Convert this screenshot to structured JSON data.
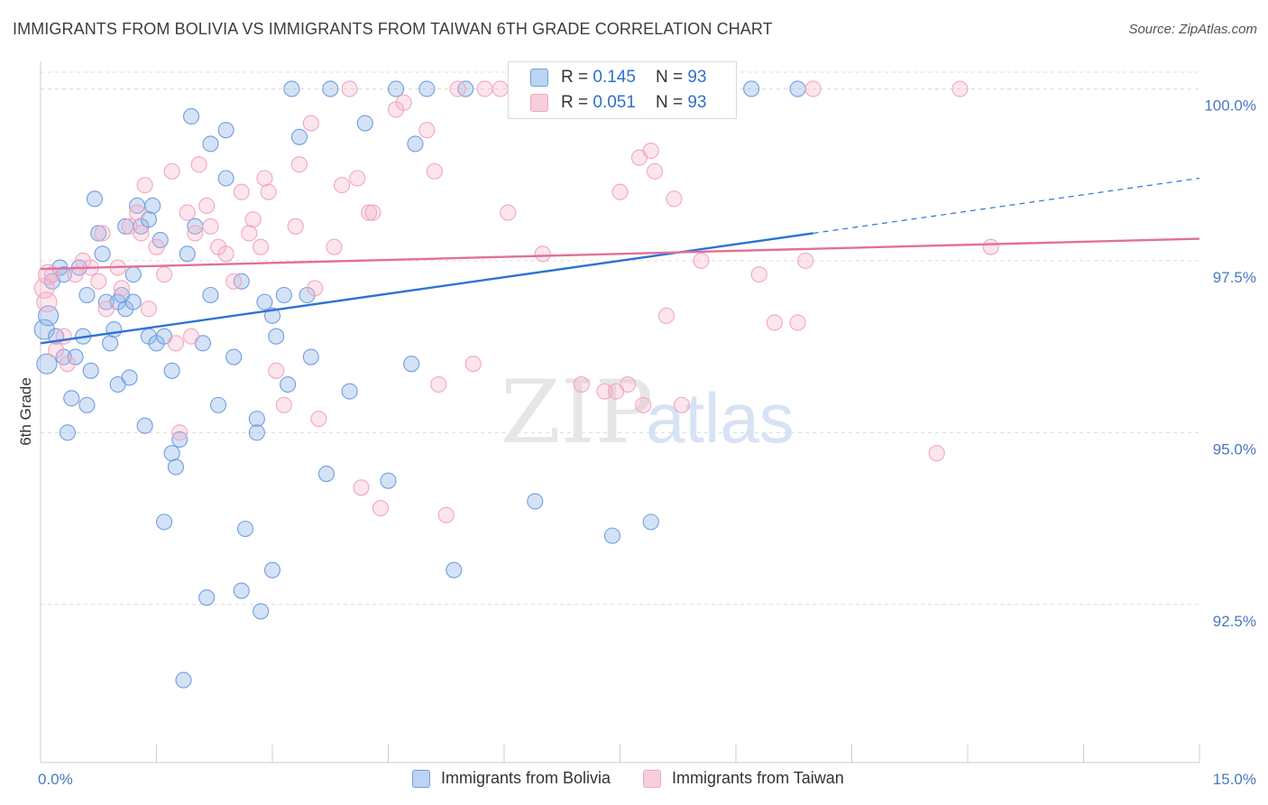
{
  "title": "IMMIGRANTS FROM BOLIVIA VS IMMIGRANTS FROM TAIWAN 6TH GRADE CORRELATION CHART",
  "source": "Source: ZipAtlas.com",
  "watermark": {
    "zip": "ZIP",
    "atlas": "atlas"
  },
  "legend": {
    "rows": [
      {
        "r_label": "R =",
        "r_value": "0.145",
        "n_label": "N =",
        "n_value": "93"
      },
      {
        "r_label": "R =",
        "r_value": "0.051",
        "n_label": "N =",
        "n_value": "93"
      }
    ]
  },
  "chart_data": {
    "type": "scatter",
    "title": "IMMIGRANTS FROM BOLIVIA VS IMMIGRANTS FROM TAIWAN 6TH GRADE CORRELATION CHART",
    "xlabel": "",
    "ylabel": "6th Grade",
    "xlim": [
      0,
      15
    ],
    "ylim": [
      90.2,
      100.4
    ],
    "x_tick_labels": [
      "0.0%",
      "15.0%"
    ],
    "y_ticks": [
      92.5,
      95.0,
      97.5,
      100.0
    ],
    "y_tick_labels": [
      "92.5%",
      "95.0%",
      "97.5%",
      "100.0%"
    ],
    "grid": "horizontal dashed",
    "legend_position": "top-center and bottom",
    "series": [
      {
        "name": "Immigrants from Bolivia",
        "color": "#6f9fe0",
        "trend": {
          "x0": 0,
          "y0": 96.3,
          "x1": 10.0,
          "y1": 97.9,
          "dashed_to_x": 15.0,
          "dashed_to_y": 98.7,
          "color": "#2f72d6"
        },
        "points": [
          [
            0.05,
            96.5
          ],
          [
            0.08,
            96.0
          ],
          [
            0.1,
            96.7
          ],
          [
            0.15,
            97.2
          ],
          [
            0.2,
            96.4
          ],
          [
            0.25,
            97.4
          ],
          [
            0.3,
            97.3
          ],
          [
            0.3,
            96.1
          ],
          [
            0.35,
            95.0
          ],
          [
            0.4,
            95.5
          ],
          [
            0.45,
            96.1
          ],
          [
            0.5,
            97.4
          ],
          [
            0.55,
            96.4
          ],
          [
            0.6,
            95.4
          ],
          [
            0.6,
            97.0
          ],
          [
            0.65,
            95.9
          ],
          [
            0.7,
            98.4
          ],
          [
            0.75,
            97.9
          ],
          [
            0.8,
            97.6
          ],
          [
            0.85,
            96.9
          ],
          [
            0.9,
            96.3
          ],
          [
            0.95,
            96.5
          ],
          [
            1.0,
            95.7
          ],
          [
            1.0,
            96.9
          ],
          [
            1.05,
            97.0
          ],
          [
            1.1,
            98.0
          ],
          [
            1.1,
            96.8
          ],
          [
            1.15,
            95.8
          ],
          [
            1.2,
            96.9
          ],
          [
            1.2,
            97.3
          ],
          [
            1.25,
            98.3
          ],
          [
            1.3,
            98.0
          ],
          [
            1.35,
            95.1
          ],
          [
            1.4,
            96.4
          ],
          [
            1.4,
            98.1
          ],
          [
            1.45,
            98.3
          ],
          [
            1.5,
            96.3
          ],
          [
            1.55,
            97.8
          ],
          [
            1.6,
            96.4
          ],
          [
            1.6,
            93.7
          ],
          [
            1.7,
            95.9
          ],
          [
            1.7,
            94.7
          ],
          [
            1.75,
            94.5
          ],
          [
            1.8,
            94.9
          ],
          [
            1.85,
            91.4
          ],
          [
            1.9,
            97.6
          ],
          [
            1.95,
            99.6
          ],
          [
            2.0,
            98.0
          ],
          [
            2.1,
            96.3
          ],
          [
            2.15,
            92.6
          ],
          [
            2.2,
            97.0
          ],
          [
            2.2,
            99.2
          ],
          [
            2.3,
            95.4
          ],
          [
            2.4,
            98.7
          ],
          [
            2.4,
            99.4
          ],
          [
            2.5,
            96.1
          ],
          [
            2.6,
            97.2
          ],
          [
            2.6,
            92.7
          ],
          [
            2.65,
            93.6
          ],
          [
            2.8,
            95.2
          ],
          [
            2.8,
            95.0
          ],
          [
            2.85,
            92.4
          ],
          [
            2.9,
            96.9
          ],
          [
            3.0,
            93.0
          ],
          [
            3.0,
            96.7
          ],
          [
            3.05,
            96.4
          ],
          [
            3.15,
            97.0
          ],
          [
            3.2,
            95.7
          ],
          [
            3.25,
            100.0
          ],
          [
            3.35,
            99.3
          ],
          [
            3.45,
            97.0
          ],
          [
            3.5,
            96.1
          ],
          [
            3.7,
            94.4
          ],
          [
            3.75,
            100.0
          ],
          [
            4.0,
            95.6
          ],
          [
            4.2,
            99.5
          ],
          [
            4.5,
            94.3
          ],
          [
            4.6,
            100.0
          ],
          [
            4.8,
            96.0
          ],
          [
            4.85,
            99.2
          ],
          [
            5.0,
            100.0
          ],
          [
            5.35,
            93.0
          ],
          [
            5.5,
            100.0
          ],
          [
            6.4,
            94.0
          ],
          [
            6.5,
            100.0
          ],
          [
            6.85,
            100.0
          ],
          [
            7.4,
            93.5
          ],
          [
            7.9,
            93.7
          ],
          [
            8.2,
            100.0
          ],
          [
            9.2,
            100.0
          ],
          [
            9.8,
            100.0
          ]
        ]
      },
      {
        "name": "Immigrants from Taiwan",
        "color": "#f2a6be",
        "trend": {
          "x0": 0,
          "y0": 97.38,
          "x1": 15.0,
          "y1": 97.82,
          "color": "#e0709a"
        },
        "points": [
          [
            0.05,
            97.1
          ],
          [
            0.08,
            96.9
          ],
          [
            0.1,
            97.3
          ],
          [
            0.15,
            97.3
          ],
          [
            0.2,
            96.2
          ],
          [
            0.3,
            96.4
          ],
          [
            0.35,
            96.0
          ],
          [
            0.45,
            97.3
          ],
          [
            0.55,
            97.5
          ],
          [
            0.65,
            97.4
          ],
          [
            0.75,
            97.2
          ],
          [
            0.8,
            97.9
          ],
          [
            0.85,
            96.8
          ],
          [
            1.0,
            97.4
          ],
          [
            1.05,
            97.1
          ],
          [
            1.15,
            98.0
          ],
          [
            1.25,
            98.2
          ],
          [
            1.3,
            97.9
          ],
          [
            1.35,
            98.6
          ],
          [
            1.4,
            96.8
          ],
          [
            1.5,
            97.7
          ],
          [
            1.6,
            97.3
          ],
          [
            1.7,
            98.8
          ],
          [
            1.75,
            96.3
          ],
          [
            1.8,
            95.0
          ],
          [
            1.9,
            98.2
          ],
          [
            1.95,
            96.4
          ],
          [
            2.0,
            97.9
          ],
          [
            2.05,
            98.9
          ],
          [
            2.15,
            98.3
          ],
          [
            2.2,
            98.0
          ],
          [
            2.3,
            97.7
          ],
          [
            2.4,
            97.6
          ],
          [
            2.5,
            97.2
          ],
          [
            2.6,
            98.5
          ],
          [
            2.7,
            97.9
          ],
          [
            2.75,
            98.1
          ],
          [
            2.85,
            97.7
          ],
          [
            2.9,
            98.7
          ],
          [
            2.95,
            98.5
          ],
          [
            3.05,
            95.9
          ],
          [
            3.15,
            95.4
          ],
          [
            3.3,
            98.0
          ],
          [
            3.35,
            98.9
          ],
          [
            3.5,
            99.5
          ],
          [
            3.55,
            97.1
          ],
          [
            3.6,
            95.2
          ],
          [
            3.8,
            97.7
          ],
          [
            3.9,
            98.6
          ],
          [
            4.0,
            100.0
          ],
          [
            4.1,
            98.7
          ],
          [
            4.15,
            94.2
          ],
          [
            4.25,
            98.2
          ],
          [
            4.3,
            98.2
          ],
          [
            4.4,
            93.9
          ],
          [
            4.6,
            99.7
          ],
          [
            4.7,
            99.8
          ],
          [
            5.0,
            99.4
          ],
          [
            5.1,
            98.8
          ],
          [
            5.15,
            95.7
          ],
          [
            5.25,
            93.8
          ],
          [
            5.4,
            100.0
          ],
          [
            5.6,
            96.0
          ],
          [
            5.75,
            100.0
          ],
          [
            5.95,
            100.0
          ],
          [
            6.05,
            98.2
          ],
          [
            6.3,
            99.7
          ],
          [
            6.5,
            97.6
          ],
          [
            6.6,
            100.0
          ],
          [
            6.7,
            100.0
          ],
          [
            7.0,
            95.7
          ],
          [
            7.3,
            95.6
          ],
          [
            7.45,
            95.6
          ],
          [
            7.5,
            98.5
          ],
          [
            7.6,
            95.7
          ],
          [
            7.75,
            99.0
          ],
          [
            7.8,
            95.4
          ],
          [
            7.9,
            99.1
          ],
          [
            7.95,
            98.8
          ],
          [
            8.1,
            96.7
          ],
          [
            8.2,
            98.4
          ],
          [
            8.3,
            95.4
          ],
          [
            8.4,
            100.0
          ],
          [
            8.55,
            97.5
          ],
          [
            8.8,
            100.0
          ],
          [
            9.3,
            97.3
          ],
          [
            9.5,
            96.6
          ],
          [
            9.8,
            96.6
          ],
          [
            9.9,
            97.5
          ],
          [
            10.0,
            100.0
          ],
          [
            11.6,
            94.7
          ],
          [
            11.9,
            100.0
          ],
          [
            12.3,
            97.7
          ]
        ]
      }
    ]
  },
  "bottom_legend": [
    {
      "label": "Immigrants from Bolivia"
    },
    {
      "label": "Immigrants from Taiwan"
    }
  ]
}
